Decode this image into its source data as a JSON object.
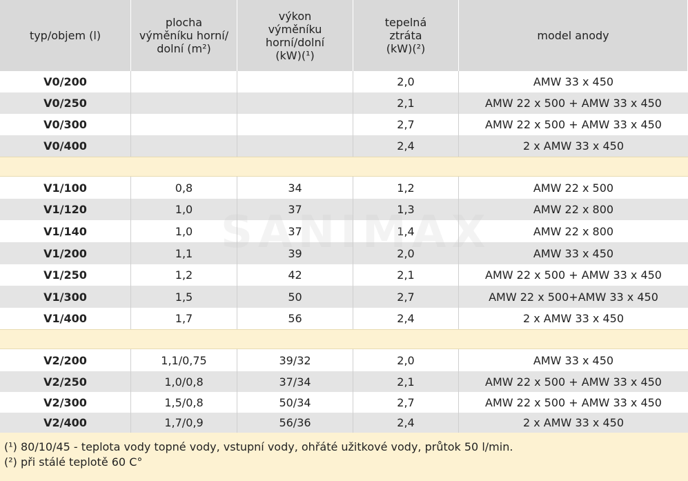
{
  "header": {
    "col0": [
      "typ/objem (l)"
    ],
    "col1": [
      "plocha",
      "výměníku horní/",
      "dolní (m²)"
    ],
    "col2": [
      "výkon",
      "výměníku",
      "horní/dolní",
      "(kW)(¹)"
    ],
    "col3": [
      "tepelná",
      "ztráta",
      "(kW)(²)"
    ],
    "col4": [
      "model anody"
    ]
  },
  "groups": [
    {
      "rows": [
        [
          "V0/200",
          "",
          "",
          "2,0",
          "AMW 33 x 450"
        ],
        [
          "V0/250",
          "",
          "",
          "2,1",
          "AMW 22 x 500 + AMW 33 x 450"
        ],
        [
          "V0/300",
          "",
          "",
          "2,7",
          "AMW 22 x 500 + AMW 33 x 450"
        ],
        [
          "V0/400",
          "",
          "",
          "2,4",
          "2 x AMW 33 x 450"
        ]
      ]
    },
    {
      "rows": [
        [
          "V1/100",
          "0,8",
          "34",
          "1,2",
          "AMW 22 x 500"
        ],
        [
          "V1/120",
          "1,0",
          "37",
          "1,3",
          "AMW 22 x 800"
        ],
        [
          "V1/140",
          "1,0",
          "37",
          "1,4",
          "AMW 22 x 800"
        ],
        [
          "V1/200",
          "1,1",
          "39",
          "2,0",
          "AMW 33 x 450"
        ],
        [
          "V1/250",
          "1,2",
          "42",
          "2,1",
          "AMW 22 x 500 + AMW 33 x 450"
        ],
        [
          "V1/300",
          "1,5",
          "50",
          "2,7",
          "AMW 22 x 500+AMW 33 x 450"
        ],
        [
          "V1/400",
          "1,7",
          "56",
          "2,4",
          "2 x AMW 33 x 450"
        ]
      ]
    },
    {
      "rows": [
        [
          "V2/200",
          "1,1/0,75",
          "39/32",
          "2,0",
          "AMW 33 x 450"
        ],
        [
          "V2/250",
          "1,0/0,8",
          "37/34",
          "2,1",
          "AMW 22 x 500 + AMW 33 x 450"
        ],
        [
          "V2/300",
          "1,5/0,8",
          "50/34",
          "2,7",
          "AMW 22 x 500 + AMW 33 x 450"
        ],
        [
          "V2/400",
          "1,7/0,9",
          "56/36",
          "2,4",
          "2 x AMW 33 x 450"
        ]
      ]
    }
  ],
  "footnotes": [
    "(¹) 80/10/45 - teplota vody topné vody, vstupní vody, ohřáté užitkové vody, průtok 50 l/min.",
    "(²) při stálé teplotě 60 C°"
  ],
  "watermark": "SANIMAX"
}
